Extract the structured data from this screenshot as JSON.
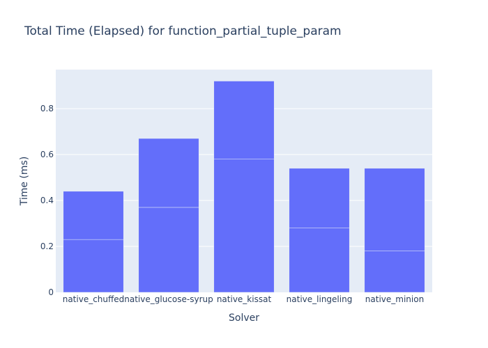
{
  "chart_data": {
    "type": "bar",
    "barmode": "stacked",
    "title": "Total Time (Elapsed) for function_partial_tuple_param",
    "xlabel": "Solver",
    "ylabel": "Time (ms)",
    "categories": [
      "native_chuffed",
      "native_glucose-syrup",
      "native_kissat",
      "native_lingeling",
      "native_minion"
    ],
    "series": [
      {
        "values": [
          0.23,
          0.37,
          0.58,
          0.28,
          0.18
        ]
      },
      {
        "values": [
          0.21,
          0.3,
          0.34,
          0.26,
          0.36
        ]
      }
    ],
    "totals": [
      0.44,
      0.67,
      0.92,
      0.54,
      0.54
    ],
    "ylim": [
      0,
      0.97
    ],
    "yticks": [
      0,
      0.2,
      0.4,
      0.6,
      0.8
    ],
    "ytick_labels": [
      "0",
      "0.2",
      "0.4",
      "0.6",
      "0.8"
    ],
    "grid": true,
    "colors": {
      "bar": "#636efa",
      "plot_bg": "#e5ecf6",
      "grid": "#ffffff",
      "text": "#2a3f5f"
    }
  }
}
